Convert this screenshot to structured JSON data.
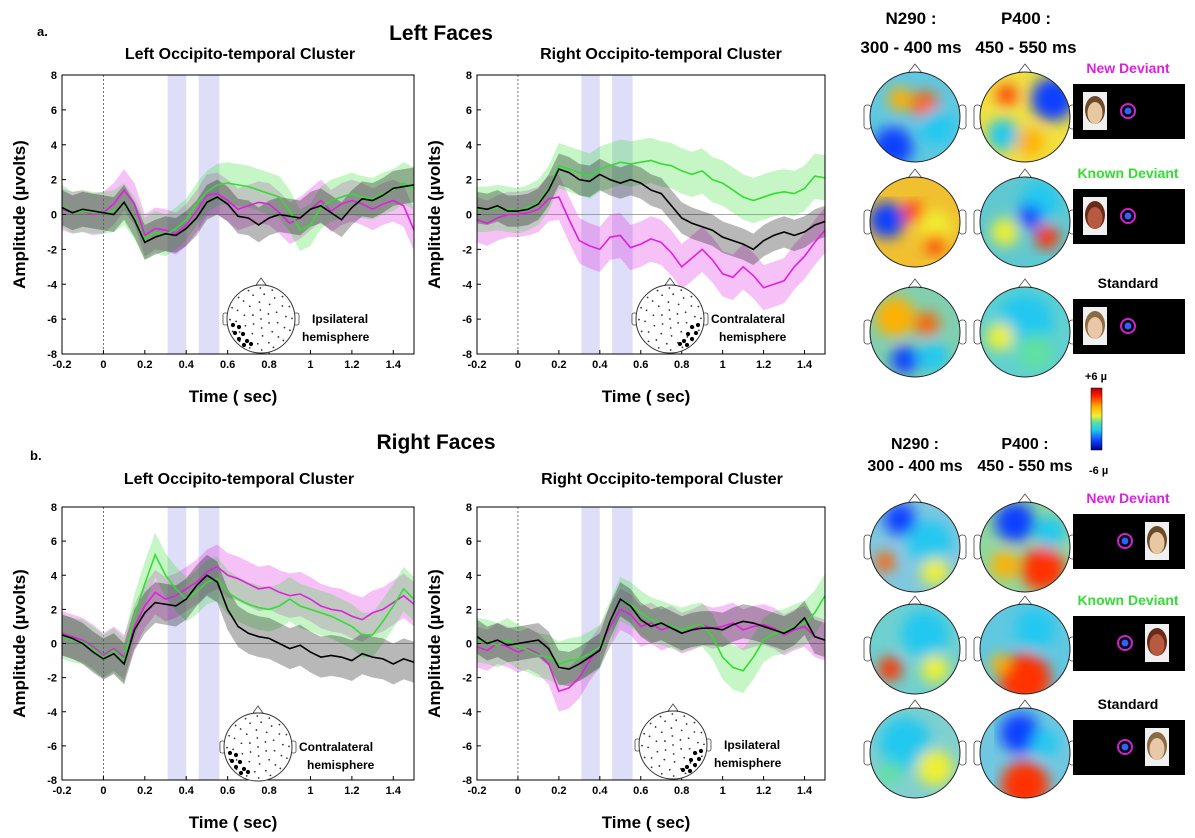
{
  "panels": [
    {
      "label": "a.",
      "title": "Left Faces",
      "maps_header": {
        "n290": {
          "line1": "N290 :",
          "line2": "300 - 400 ms"
        },
        "p400": {
          "line1": "P400 :",
          "line2": "450 - 550 ms"
        }
      },
      "conditions": [
        {
          "label": "New Deviant",
          "color": "#e020e0",
          "face_side": "left"
        },
        {
          "label": "Known Deviant",
          "color": "#33dd33",
          "face_side": "left"
        },
        {
          "label": "Standard",
          "color": "#000000",
          "face_side": "left"
        }
      ]
    },
    {
      "label": "b.",
      "title": "Right Faces",
      "maps_header": {
        "n290": {
          "line1": "N290 :",
          "line2": "300 - 400 ms"
        },
        "p400": {
          "line1": "P400 :",
          "line2": "450 - 550 ms"
        }
      },
      "conditions": [
        {
          "label": "New Deviant",
          "color": "#e020e0",
          "face_side": "right"
        },
        {
          "label": "Known Deviant",
          "color": "#33dd33",
          "face_side": "right"
        },
        {
          "label": "Standard",
          "color": "#000000",
          "face_side": "right"
        }
      ]
    }
  ],
  "colorbar": {
    "max_label": "+6 µ",
    "min_label": "-6 µ"
  },
  "colors": {
    "new_deviant": "#e020e0",
    "known_deviant": "#33dd33",
    "standard": "#000000",
    "highlight_window": "#d8d8f8"
  },
  "chart_data": [
    {
      "type": "line",
      "panel": "a",
      "title": "Left Occipito-temporal Cluster",
      "xlabel": "Time ( sec)",
      "ylabel": "Amplitude (µvolts)",
      "xlim": [
        -0.2,
        1.5
      ],
      "ylim": [
        -8,
        8
      ],
      "xticks": [
        -0.2,
        0,
        0.2,
        0.4,
        0.6,
        0.8,
        1,
        1.2,
        1.4
      ],
      "yticks": [
        -8,
        -6,
        -4,
        -2,
        0,
        2,
        4,
        6,
        8
      ],
      "windows": [
        [
          0.31,
          0.4
        ],
        [
          0.46,
          0.56
        ]
      ],
      "inset_label": [
        "Ipsilateral",
        "hemisphere"
      ],
      "cluster_side": "left",
      "x": [
        -0.2,
        -0.15,
        -0.1,
        -0.05,
        0,
        0.05,
        0.1,
        0.15,
        0.2,
        0.25,
        0.3,
        0.35,
        0.4,
        0.45,
        0.5,
        0.55,
        0.6,
        0.65,
        0.7,
        0.75,
        0.8,
        0.85,
        0.9,
        0.95,
        1.0,
        1.05,
        1.1,
        1.15,
        1.2,
        1.25,
        1.3,
        1.35,
        1.4,
        1.45,
        1.5
      ],
      "series": [
        {
          "key": "new_deviant",
          "values": [
            0.3,
            0.1,
            0.2,
            0.0,
            0.1,
            0.6,
            1.4,
            0.6,
            -1.2,
            -0.8,
            -0.9,
            -1.1,
            -0.6,
            0.2,
            1.1,
            1.2,
            0.8,
            0.3,
            0.5,
            0.7,
            0.6,
            0.1,
            -0.5,
            -0.2,
            0.3,
            0.8,
            0.2,
            0.6,
            0.8,
            0.6,
            0.3,
            0.6,
            0.8,
            0.5,
            -0.9
          ],
          "band": 1.2
        },
        {
          "key": "known_deviant",
          "values": [
            0.5,
            0.1,
            0.2,
            0.1,
            0.1,
            0.2,
            0.6,
            -0.2,
            -1.4,
            -1.0,
            -1.2,
            -0.8,
            -0.3,
            0.6,
            1.3,
            1.7,
            1.8,
            1.7,
            1.6,
            1.4,
            1.2,
            1.0,
            0.2,
            -0.9,
            -0.6,
            0.4,
            0.8,
            1.0,
            1.2,
            1.0,
            0.9,
            1.2,
            1.4,
            1.8,
            1.5
          ],
          "band": 1.2
        },
        {
          "key": "standard",
          "values": [
            0.4,
            0.1,
            0.3,
            0.2,
            0.1,
            0.0,
            0.7,
            -0.3,
            -1.6,
            -1.3,
            -1.1,
            -1.2,
            -0.8,
            -0.2,
            0.7,
            1.0,
            0.6,
            -0.1,
            -0.2,
            -0.6,
            -0.2,
            0.0,
            -0.1,
            -0.2,
            0.3,
            0.5,
            0.1,
            -0.3,
            0.4,
            0.9,
            0.8,
            1.1,
            1.5,
            1.6,
            1.7
          ],
          "band": 1.0
        }
      ]
    },
    {
      "type": "line",
      "panel": "a",
      "title": "Right Occipito-temporal Cluster",
      "xlabel": "Time ( sec)",
      "ylabel": "Amplitude (µvolts)",
      "xlim": [
        -0.2,
        1.5
      ],
      "ylim": [
        -8,
        8
      ],
      "xticks": [
        -0.2,
        0,
        0.2,
        0.4,
        0.6,
        0.8,
        1,
        1.2,
        1.4
      ],
      "yticks": [
        -8,
        -6,
        -4,
        -2,
        0,
        2,
        4,
        6,
        8
      ],
      "windows": [
        [
          0.31,
          0.4
        ],
        [
          0.46,
          0.56
        ]
      ],
      "inset_label": [
        "Contralateral",
        "hemisphere"
      ],
      "cluster_side": "right",
      "x": [
        -0.2,
        -0.15,
        -0.1,
        -0.05,
        0,
        0.05,
        0.1,
        0.15,
        0.2,
        0.25,
        0.3,
        0.35,
        0.4,
        0.45,
        0.5,
        0.55,
        0.6,
        0.65,
        0.7,
        0.75,
        0.8,
        0.85,
        0.9,
        0.95,
        1.0,
        1.05,
        1.1,
        1.15,
        1.2,
        1.25,
        1.3,
        1.35,
        1.4,
        1.45,
        1.5
      ],
      "series": [
        {
          "key": "new_deviant",
          "values": [
            -0.3,
            -0.5,
            -0.2,
            0.0,
            0.0,
            0.1,
            0.3,
            0.9,
            1.0,
            -0.3,
            -1.5,
            -1.8,
            -2.0,
            -1.3,
            -1.2,
            -1.9,
            -1.7,
            -1.4,
            -1.6,
            -2.2,
            -3.0,
            -2.5,
            -2.0,
            -2.6,
            -3.4,
            -3.6,
            -3.0,
            -3.5,
            -4.2,
            -4.0,
            -3.8,
            -3.0,
            -2.4,
            -1.6,
            -0.9
          ],
          "band": 1.3
        },
        {
          "key": "known_deviant",
          "values": [
            0.3,
            0.3,
            0.4,
            0.3,
            0.2,
            0.4,
            0.7,
            1.5,
            2.8,
            2.6,
            2.4,
            2.2,
            2.6,
            2.8,
            3.0,
            2.9,
            3.0,
            3.1,
            2.9,
            2.8,
            2.5,
            2.3,
            2.5,
            2.0,
            1.8,
            1.4,
            1.0,
            0.8,
            1.0,
            1.2,
            1.3,
            1.2,
            1.5,
            2.2,
            2.1
          ],
          "band": 1.3
        },
        {
          "key": "standard",
          "values": [
            0.4,
            0.3,
            0.5,
            0.2,
            0.2,
            0.3,
            0.6,
            1.4,
            2.6,
            2.4,
            2.0,
            1.9,
            2.3,
            2.0,
            1.8,
            2.0,
            1.8,
            1.4,
            1.2,
            0.5,
            -0.2,
            -0.5,
            -0.7,
            -0.9,
            -1.3,
            -1.5,
            -1.7,
            -2.0,
            -1.5,
            -1.2,
            -1.0,
            -1.2,
            -1.0,
            -0.6,
            -0.4
          ],
          "band": 0.9
        }
      ]
    },
    {
      "type": "line",
      "panel": "b",
      "title": "Left Occipito-temporal Cluster",
      "xlabel": "Time ( sec)",
      "ylabel": "Amplitude (µvolts)",
      "xlim": [
        -0.2,
        1.5
      ],
      "ylim": [
        -8,
        8
      ],
      "xticks": [
        -0.2,
        0,
        0.2,
        0.4,
        0.6,
        0.8,
        1,
        1.2,
        1.4
      ],
      "yticks": [
        -8,
        -6,
        -4,
        -2,
        0,
        2,
        4,
        6,
        8
      ],
      "windows": [
        [
          0.31,
          0.4
        ],
        [
          0.46,
          0.56
        ]
      ],
      "inset_label": [
        "Contralateral",
        "hemisphere"
      ],
      "cluster_side": "left",
      "x": [
        -0.2,
        -0.15,
        -0.1,
        -0.05,
        0,
        0.05,
        0.1,
        0.15,
        0.2,
        0.25,
        0.3,
        0.35,
        0.4,
        0.45,
        0.5,
        0.55,
        0.6,
        0.65,
        0.7,
        0.75,
        0.8,
        0.85,
        0.9,
        0.95,
        1.0,
        1.05,
        1.1,
        1.15,
        1.2,
        1.25,
        1.3,
        1.35,
        1.4,
        1.45,
        1.5
      ],
      "series": [
        {
          "key": "new_deviant",
          "values": [
            0.6,
            0.4,
            0.2,
            -0.2,
            -0.7,
            -0.3,
            -0.8,
            1.0,
            2.2,
            3.0,
            2.6,
            2.8,
            3.2,
            3.6,
            4.2,
            4.5,
            4.0,
            3.8,
            3.5,
            3.2,
            3.3,
            3.0,
            2.8,
            2.9,
            2.6,
            2.2,
            2.0,
            1.9,
            1.6,
            1.4,
            1.8,
            2.0,
            2.4,
            2.8,
            2.3
          ],
          "band": 1.3
        },
        {
          "key": "known_deviant",
          "values": [
            0.4,
            0.2,
            0.1,
            -0.3,
            -0.8,
            -0.4,
            -1.0,
            1.6,
            3.5,
            5.2,
            4.0,
            3.2,
            2.6,
            3.0,
            3.6,
            3.8,
            3.0,
            2.6,
            2.3,
            2.1,
            2.0,
            2.2,
            2.6,
            2.2,
            2.0,
            1.8,
            1.6,
            1.3,
            1.0,
            0.5,
            0.5,
            1.3,
            2.2,
            3.2,
            2.6
          ],
          "band": 1.3
        },
        {
          "key": "standard",
          "values": [
            0.5,
            0.3,
            0.0,
            -0.5,
            -0.9,
            -0.6,
            -1.2,
            0.8,
            1.8,
            2.4,
            2.3,
            2.2,
            2.6,
            3.4,
            4.0,
            3.6,
            2.0,
            1.0,
            0.6,
            0.4,
            0.3,
            0.0,
            -0.3,
            -0.1,
            -0.5,
            -0.8,
            -0.7,
            -0.8,
            -1.0,
            -0.6,
            -0.8,
            -0.9,
            -1.2,
            -0.9,
            -1.1
          ],
          "band": 1.2
        }
      ]
    },
    {
      "type": "line",
      "panel": "b",
      "title": "Right Occipito-temporal Cluster",
      "xlabel": "Time ( sec)",
      "ylabel": "Amplitude (µvolts)",
      "xlim": [
        -0.2,
        1.5
      ],
      "ylim": [
        -8,
        8
      ],
      "xticks": [
        -0.2,
        0,
        0.2,
        0.4,
        0.6,
        0.8,
        1,
        1.2,
        1.4
      ],
      "yticks": [
        -8,
        -6,
        -4,
        -2,
        0,
        2,
        4,
        6,
        8
      ],
      "windows": [
        [
          0.31,
          0.4
        ],
        [
          0.46,
          0.56
        ]
      ],
      "inset_label": [
        "Ipsilateral",
        "hemisphere"
      ],
      "cluster_side": "right",
      "x": [
        -0.2,
        -0.15,
        -0.1,
        -0.05,
        0,
        0.05,
        0.1,
        0.15,
        0.2,
        0.25,
        0.3,
        0.35,
        0.4,
        0.45,
        0.5,
        0.55,
        0.6,
        0.65,
        0.7,
        0.75,
        0.8,
        0.85,
        0.9,
        0.95,
        1.0,
        1.05,
        1.1,
        1.15,
        1.2,
        1.25,
        1.3,
        1.35,
        1.4,
        1.45,
        1.5
      ],
      "series": [
        {
          "key": "new_deviant",
          "values": [
            -0.2,
            -0.4,
            0.0,
            -0.2,
            -0.5,
            -0.3,
            -0.6,
            -1.2,
            -2.8,
            -2.6,
            -2.0,
            -1.0,
            -0.2,
            1.0,
            2.0,
            1.7,
            1.0,
            1.2,
            0.8,
            1.0,
            0.6,
            0.8,
            1.1,
            0.9,
            1.0,
            1.2,
            0.8,
            1.0,
            1.1,
            0.9,
            0.5,
            0.8,
            1.0,
            0.4,
            0.2
          ],
          "band": 1.2
        },
        {
          "key": "known_deviant",
          "values": [
            0.2,
            0.1,
            -0.1,
            0.2,
            -0.2,
            -0.4,
            -0.7,
            -0.8,
            -1.2,
            -1.0,
            -0.9,
            -0.6,
            -0.2,
            1.2,
            2.6,
            2.3,
            1.8,
            1.4,
            1.2,
            1.0,
            0.8,
            1.0,
            1.1,
            0.4,
            -0.8,
            -1.4,
            -1.6,
            -0.8,
            0.2,
            0.6,
            0.7,
            1.0,
            1.2,
            1.8,
            2.8
          ],
          "band": 1.3
        },
        {
          "key": "standard",
          "values": [
            0.4,
            0.0,
            0.2,
            -0.1,
            0.0,
            0.1,
            0.2,
            -0.3,
            -1.4,
            -1.5,
            -1.2,
            -0.8,
            -0.4,
            1.3,
            2.6,
            2.2,
            1.4,
            1.0,
            1.2,
            0.9,
            0.6,
            0.8,
            0.9,
            0.9,
            0.8,
            1.1,
            1.3,
            1.2,
            1.0,
            0.8,
            0.6,
            0.9,
            1.5,
            0.4,
            0.2
          ],
          "band": 1.0
        }
      ]
    }
  ]
}
